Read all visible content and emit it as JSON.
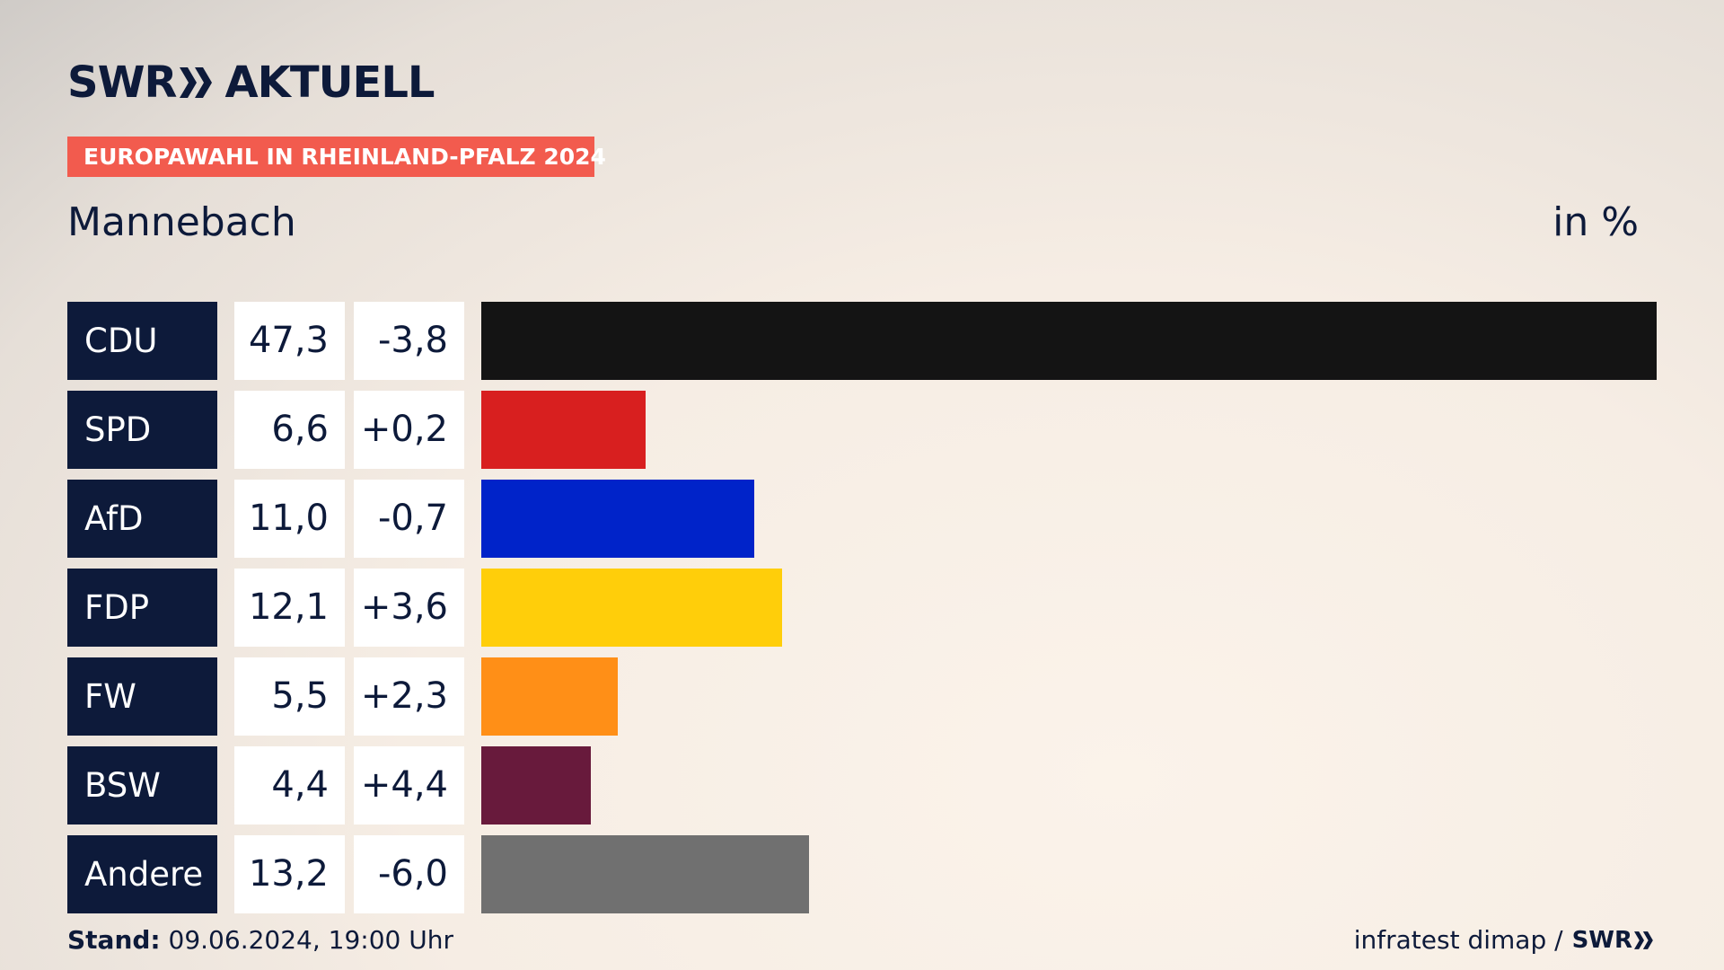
{
  "brand": {
    "name_left": "SWR",
    "name_right": "AKTUELL"
  },
  "tag": "EUROPAWAHL IN RHEINLAND-PFALZ 2024",
  "region": "Mannebach",
  "unit": "in %",
  "footer": {
    "stand_label": "Stand:",
    "stand_value": "09.06.2024, 19:00 Uhr",
    "source": "infratest dimap /",
    "source_brand": "SWR"
  },
  "chart_data": {
    "type": "bar",
    "orientation": "horizontal",
    "categories": [
      "CDU",
      "SPD",
      "AfD",
      "FDP",
      "FW",
      "BSW",
      "Andere"
    ],
    "series": [
      {
        "values": [
          47.3,
          6.6,
          11.0,
          12.1,
          5.5,
          4.4,
          13.2
        ],
        "labels": [
          "47,3",
          "6,6",
          "11,0",
          "12,1",
          "5,5",
          "4,4",
          "13,2"
        ]
      },
      {
        "values": [
          -3.8,
          0.2,
          -0.7,
          3.6,
          2.3,
          4.4,
          -6.0
        ],
        "labels": [
          "-3,8",
          "+0,2",
          "-0,7",
          "+3,6",
          "+2,3",
          "+4,4",
          "-6,0"
        ]
      }
    ],
    "colors": [
      "#141414",
      "#d81f1f",
      "#0023c9",
      "#ffce0a",
      "#ff8f17",
      "#681a3c",
      "#707070"
    ]
  }
}
